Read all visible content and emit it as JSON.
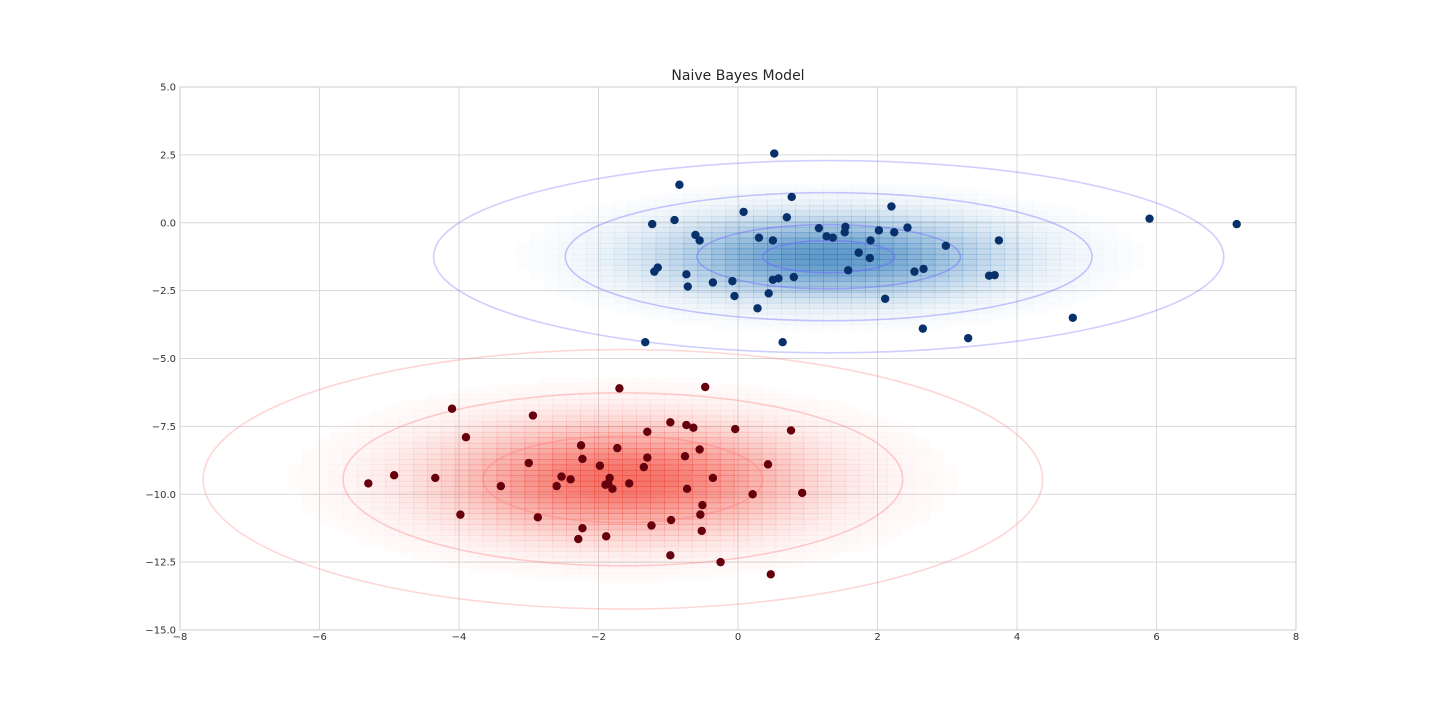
{
  "chart_data": {
    "type": "scatter",
    "title": "Naive Bayes Model",
    "xlabel": "",
    "ylabel": "",
    "xlim": [
      -8,
      8
    ],
    "ylim": [
      -15,
      5
    ],
    "x_ticks": [
      -8,
      -6,
      -4,
      -2,
      0,
      2,
      4,
      6,
      8
    ],
    "y_ticks": [
      -15.0,
      -12.5,
      -10.0,
      -7.5,
      -5.0,
      -2.5,
      0.0,
      2.5,
      5.0
    ],
    "x_tick_labels": [
      "−8",
      "−6",
      "−4",
      "−2",
      "0",
      "2",
      "4",
      "6",
      "8"
    ],
    "y_tick_labels": [
      "−15.0",
      "−12.5",
      "−10.0",
      "−7.5",
      "−5.0",
      "−2.5",
      "0.0",
      "2.5",
      "5.0"
    ],
    "grid": true,
    "legend": "none",
    "series": [
      {
        "color": "#08306b",
        "density_color": "#2171b5",
        "contour_color": "#6b6bff",
        "gaussian": {
          "mean": [
            1.3,
            -1.25
          ],
          "std": [
            1.6,
            1.0
          ]
        },
        "points": [
          [
            0.52,
            2.55
          ],
          [
            -0.84,
            1.4
          ],
          [
            0.77,
            0.95
          ],
          [
            2.2,
            0.6
          ],
          [
            0.08,
            0.4
          ],
          [
            0.7,
            0.2
          ],
          [
            -0.91,
            0.1
          ],
          [
            -1.23,
            -0.05
          ],
          [
            1.16,
            -0.2
          ],
          [
            1.54,
            -0.15
          ],
          [
            2.43,
            -0.18
          ],
          [
            -0.61,
            -0.45
          ],
          [
            1.27,
            -0.5
          ],
          [
            1.53,
            -0.35
          ],
          [
            2.02,
            -0.28
          ],
          [
            2.24,
            -0.35
          ],
          [
            0.3,
            -0.55
          ],
          [
            1.36,
            -0.55
          ],
          [
            -0.55,
            -0.65
          ],
          [
            0.5,
            -0.65
          ],
          [
            1.9,
            -0.65
          ],
          [
            2.98,
            -0.85
          ],
          [
            3.74,
            -0.65
          ],
          [
            1.73,
            -1.1
          ],
          [
            1.89,
            -1.3
          ],
          [
            -1.15,
            -1.65
          ],
          [
            -1.2,
            -1.8
          ],
          [
            1.58,
            -1.75
          ],
          [
            2.53,
            -1.8
          ],
          [
            2.66,
            -1.7
          ],
          [
            -0.74,
            -1.9
          ],
          [
            0.58,
            -2.05
          ],
          [
            0.5,
            -2.1
          ],
          [
            0.8,
            -2.0
          ],
          [
            3.6,
            -1.95
          ],
          [
            3.68,
            -1.93
          ],
          [
            -0.36,
            -2.2
          ],
          [
            -0.08,
            -2.15
          ],
          [
            -0.72,
            -2.35
          ],
          [
            0.44,
            -2.6
          ],
          [
            -0.05,
            -2.7
          ],
          [
            2.11,
            -2.8
          ],
          [
            0.28,
            -3.15
          ],
          [
            4.8,
            -3.5
          ],
          [
            2.65,
            -3.9
          ],
          [
            3.3,
            -4.25
          ],
          [
            -1.33,
            -4.4
          ],
          [
            0.64,
            -4.4
          ],
          [
            5.9,
            0.15
          ],
          [
            7.15,
            -0.05
          ]
        ]
      },
      {
        "color": "#67000d",
        "density_color": "#ef3b2c",
        "contour_color": "#ff8080",
        "gaussian": {
          "mean": [
            -1.65,
            -9.45
          ],
          "std": [
            1.7,
            1.35
          ]
        },
        "points": [
          [
            -1.7,
            -6.1
          ],
          [
            -0.47,
            -6.05
          ],
          [
            -4.1,
            -6.85
          ],
          [
            -2.94,
            -7.1
          ],
          [
            -0.97,
            -7.35
          ],
          [
            -0.74,
            -7.45
          ],
          [
            -0.64,
            -7.55
          ],
          [
            -0.04,
            -7.6
          ],
          [
            0.76,
            -7.65
          ],
          [
            -1.3,
            -7.7
          ],
          [
            -3.9,
            -7.9
          ],
          [
            -2.25,
            -8.2
          ],
          [
            -1.73,
            -8.3
          ],
          [
            -0.55,
            -8.35
          ],
          [
            -2.23,
            -8.7
          ],
          [
            -1.3,
            -8.65
          ],
          [
            -0.76,
            -8.6
          ],
          [
            -3.0,
            -8.85
          ],
          [
            -1.98,
            -8.95
          ],
          [
            -1.35,
            -9.0
          ],
          [
            0.43,
            -8.9
          ],
          [
            -4.93,
            -9.3
          ],
          [
            -4.34,
            -9.4
          ],
          [
            -2.53,
            -9.35
          ],
          [
            -2.4,
            -9.45
          ],
          [
            -1.84,
            -9.4
          ],
          [
            -0.36,
            -9.4
          ],
          [
            -5.3,
            -9.6
          ],
          [
            -3.4,
            -9.7
          ],
          [
            -2.6,
            -9.7
          ],
          [
            -1.9,
            -9.65
          ],
          [
            -1.56,
            -9.6
          ],
          [
            -1.8,
            -9.8
          ],
          [
            -0.73,
            -9.8
          ],
          [
            0.21,
            -10.0
          ],
          [
            0.92,
            -9.95
          ],
          [
            -0.51,
            -10.4
          ],
          [
            -3.98,
            -10.75
          ],
          [
            -2.87,
            -10.85
          ],
          [
            -0.54,
            -10.75
          ],
          [
            -0.96,
            -10.95
          ],
          [
            -1.24,
            -11.15
          ],
          [
            -2.23,
            -11.25
          ],
          [
            -0.52,
            -11.35
          ],
          [
            -1.89,
            -11.55
          ],
          [
            -2.29,
            -11.65
          ],
          [
            -0.97,
            -12.25
          ],
          [
            -0.25,
            -12.5
          ],
          [
            0.47,
            -12.95
          ],
          [
            -1.86,
            -9.6
          ]
        ]
      }
    ]
  }
}
